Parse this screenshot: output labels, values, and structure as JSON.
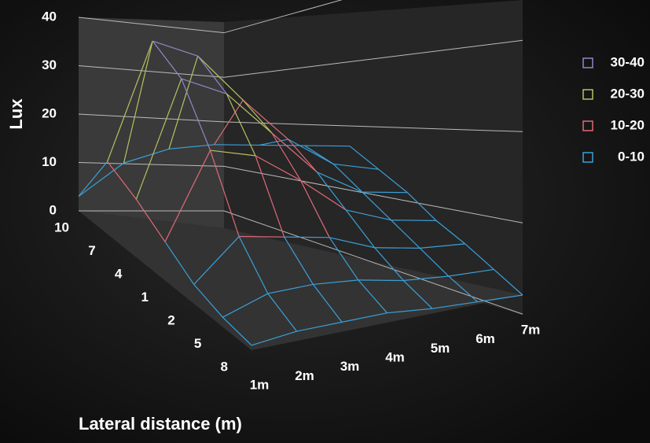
{
  "chart_data": {
    "type": "surface",
    "z_label": "Lux",
    "x_label": "Lateral distance (m)",
    "categories": [
      "1m",
      "2m",
      "3m",
      "4m",
      "5m",
      "6m",
      "7m"
    ],
    "depth_categories": [
      "10",
      "7",
      "4",
      "1",
      "2",
      "5",
      "8"
    ],
    "values": [
      [
        3,
        8,
        9,
        8,
        6,
        4,
        2
      ],
      [
        15,
        38,
        33,
        22,
        12,
        5,
        2
      ],
      [
        12,
        35,
        30,
        20,
        10,
        4,
        2
      ],
      [
        8,
        25,
        22,
        15,
        7,
        3,
        1
      ],
      [
        4,
        12,
        10,
        8,
        4,
        2,
        1
      ],
      [
        2,
        5,
        5,
        4,
        2,
        1,
        0.5
      ],
      [
        1,
        2,
        2,
        2,
        1,
        0.5,
        0
      ]
    ],
    "zlim": [
      0,
      40
    ],
    "zticks": [
      0,
      10,
      20,
      30,
      40
    ],
    "bands": [
      {
        "name": "30-40",
        "range": [
          30,
          40
        ],
        "color": "#9088c8"
      },
      {
        "name": "20-30",
        "range": [
          20,
          30
        ],
        "color": "#b8c060"
      },
      {
        "name": "10-20",
        "range": [
          10,
          20
        ],
        "color": "#e06a78"
      },
      {
        "name": "0-10",
        "range": [
          0,
          10
        ],
        "color": "#3aa0d8"
      }
    ]
  }
}
